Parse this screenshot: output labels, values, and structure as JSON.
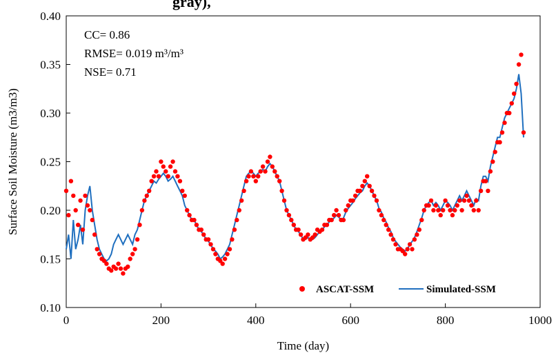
{
  "chart_data": {
    "type": "scatter",
    "title": "",
    "partial_title_visible": "gray),",
    "xlabel": "Time (day)",
    "ylabel": "Surface Soil Moisture (m3/m3)",
    "xlim": [
      0,
      1000
    ],
    "ylim": [
      0.1,
      0.4
    ],
    "x_ticks": [
      0,
      200,
      400,
      600,
      800,
      1000
    ],
    "x_tick_labels": [
      "0",
      "200",
      "400",
      "600",
      "800",
      "1000"
    ],
    "y_ticks": [
      0.1,
      0.15,
      0.2,
      0.25,
      0.3,
      0.35,
      0.4
    ],
    "y_tick_labels": [
      "0.10",
      "0.15",
      "0.20",
      "0.25",
      "0.30",
      "0.35",
      "0.40"
    ],
    "grid": false,
    "legend_position": "bottom-right",
    "annotations": [
      "CC= 0.86",
      "RMSE= 0.019 m³/m³",
      "NSE= 0.71"
    ],
    "series": [
      {
        "name": "ASCAT-SSM",
        "style": "markers",
        "color": "#ff0000",
        "x": [
          0,
          5,
          10,
          15,
          20,
          25,
          30,
          35,
          40,
          45,
          50,
          55,
          60,
          65,
          70,
          75,
          80,
          85,
          90,
          95,
          100,
          105,
          110,
          115,
          120,
          125,
          130,
          135,
          140,
          145,
          150,
          155,
          160,
          165,
          170,
          175,
          180,
          185,
          190,
          195,
          200,
          205,
          210,
          215,
          220,
          225,
          230,
          235,
          240,
          245,
          250,
          255,
          260,
          265,
          270,
          275,
          280,
          285,
          290,
          295,
          300,
          305,
          310,
          315,
          320,
          325,
          330,
          335,
          340,
          345,
          350,
          355,
          360,
          365,
          370,
          375,
          380,
          385,
          390,
          395,
          400,
          405,
          410,
          415,
          420,
          425,
          430,
          435,
          440,
          445,
          450,
          455,
          460,
          465,
          470,
          475,
          480,
          485,
          490,
          495,
          500,
          505,
          510,
          515,
          520,
          525,
          530,
          535,
          540,
          545,
          550,
          555,
          560,
          565,
          570,
          575,
          580,
          585,
          590,
          595,
          600,
          605,
          610,
          615,
          620,
          625,
          630,
          635,
          640,
          645,
          650,
          655,
          660,
          665,
          670,
          675,
          680,
          685,
          690,
          695,
          700,
          705,
          710,
          715,
          720,
          725,
          730,
          735,
          740,
          745,
          750,
          755,
          760,
          765,
          770,
          775,
          780,
          785,
          790,
          795,
          800,
          805,
          810,
          815,
          820,
          825,
          830,
          835,
          840,
          845,
          850,
          855,
          860,
          865,
          870,
          875,
          880,
          885,
          890,
          895,
          900,
          905,
          910,
          915,
          920,
          925,
          930,
          935,
          940,
          945,
          950,
          955,
          960,
          965
        ],
        "y": [
          0.22,
          0.195,
          0.23,
          0.215,
          0.2,
          0.185,
          0.21,
          0.18,
          0.215,
          0.205,
          0.2,
          0.19,
          0.175,
          0.16,
          0.155,
          0.15,
          0.148,
          0.145,
          0.14,
          0.138,
          0.142,
          0.14,
          0.145,
          0.14,
          0.135,
          0.14,
          0.142,
          0.15,
          0.155,
          0.16,
          0.17,
          0.185,
          0.2,
          0.21,
          0.215,
          0.22,
          0.23,
          0.235,
          0.24,
          0.235,
          0.25,
          0.245,
          0.24,
          0.235,
          0.245,
          0.25,
          0.24,
          0.235,
          0.23,
          0.22,
          0.215,
          0.2,
          0.195,
          0.19,
          0.19,
          0.185,
          0.18,
          0.18,
          0.175,
          0.17,
          0.17,
          0.165,
          0.16,
          0.155,
          0.15,
          0.148,
          0.145,
          0.15,
          0.155,
          0.16,
          0.17,
          0.18,
          0.19,
          0.2,
          0.21,
          0.22,
          0.23,
          0.235,
          0.24,
          0.235,
          0.23,
          0.235,
          0.24,
          0.245,
          0.24,
          0.25,
          0.255,
          0.245,
          0.24,
          0.235,
          0.23,
          0.22,
          0.21,
          0.2,
          0.195,
          0.19,
          0.185,
          0.18,
          0.18,
          0.175,
          0.17,
          0.172,
          0.175,
          0.17,
          0.172,
          0.175,
          0.18,
          0.178,
          0.18,
          0.185,
          0.185,
          0.19,
          0.19,
          0.195,
          0.2,
          0.195,
          0.19,
          0.19,
          0.2,
          0.205,
          0.21,
          0.21,
          0.215,
          0.22,
          0.22,
          0.225,
          0.23,
          0.235,
          0.225,
          0.22,
          0.215,
          0.21,
          0.2,
          0.195,
          0.19,
          0.185,
          0.18,
          0.175,
          0.17,
          0.165,
          0.16,
          0.16,
          0.158,
          0.155,
          0.16,
          0.165,
          0.16,
          0.17,
          0.175,
          0.18,
          0.19,
          0.2,
          0.205,
          0.205,
          0.21,
          0.2,
          0.205,
          0.2,
          0.195,
          0.2,
          0.21,
          0.205,
          0.2,
          0.195,
          0.2,
          0.205,
          0.21,
          0.2,
          0.21,
          0.215,
          0.21,
          0.205,
          0.2,
          0.21,
          0.2,
          0.22,
          0.23,
          0.23,
          0.22,
          0.24,
          0.25,
          0.26,
          0.27,
          0.27,
          0.28,
          0.29,
          0.3,
          0.3,
          0.31,
          0.32,
          0.33,
          0.35,
          0.36,
          0.28
        ]
      },
      {
        "name": "Simulated-SSM",
        "style": "line",
        "color": "#1f6fbf",
        "x": [
          0,
          5,
          10,
          15,
          20,
          25,
          30,
          35,
          40,
          45,
          50,
          55,
          60,
          65,
          70,
          75,
          80,
          85,
          90,
          95,
          100,
          105,
          110,
          115,
          120,
          125,
          130,
          135,
          140,
          145,
          150,
          155,
          160,
          165,
          170,
          175,
          180,
          185,
          190,
          195,
          200,
          205,
          210,
          215,
          220,
          225,
          230,
          235,
          240,
          245,
          250,
          255,
          260,
          265,
          270,
          275,
          280,
          285,
          290,
          295,
          300,
          305,
          310,
          315,
          320,
          325,
          330,
          335,
          340,
          345,
          350,
          355,
          360,
          365,
          370,
          375,
          380,
          385,
          390,
          395,
          400,
          405,
          410,
          415,
          420,
          425,
          430,
          435,
          440,
          445,
          450,
          455,
          460,
          465,
          470,
          475,
          480,
          485,
          490,
          495,
          500,
          505,
          510,
          515,
          520,
          525,
          530,
          535,
          540,
          545,
          550,
          555,
          560,
          565,
          570,
          575,
          580,
          585,
          590,
          595,
          600,
          605,
          610,
          615,
          620,
          625,
          630,
          635,
          640,
          645,
          650,
          655,
          660,
          665,
          670,
          675,
          680,
          685,
          690,
          695,
          700,
          705,
          710,
          715,
          720,
          725,
          730,
          735,
          740,
          745,
          750,
          755,
          760,
          765,
          770,
          775,
          780,
          785,
          790,
          795,
          800,
          805,
          810,
          815,
          820,
          825,
          830,
          835,
          840,
          845,
          850,
          855,
          860,
          865,
          870,
          875,
          880,
          885,
          890,
          895,
          900,
          905,
          910,
          915,
          920,
          925,
          930,
          935,
          940,
          945,
          950,
          955,
          960,
          965
        ],
        "y": [
          0.16,
          0.175,
          0.15,
          0.19,
          0.16,
          0.17,
          0.185,
          0.165,
          0.2,
          0.215,
          0.225,
          0.2,
          0.185,
          0.17,
          0.16,
          0.155,
          0.15,
          0.148,
          0.15,
          0.155,
          0.165,
          0.17,
          0.175,
          0.17,
          0.165,
          0.17,
          0.175,
          0.17,
          0.165,
          0.175,
          0.18,
          0.19,
          0.2,
          0.21,
          0.215,
          0.22,
          0.225,
          0.23,
          0.228,
          0.232,
          0.235,
          0.238,
          0.235,
          0.23,
          0.232,
          0.235,
          0.23,
          0.225,
          0.22,
          0.215,
          0.205,
          0.2,
          0.195,
          0.19,
          0.19,
          0.185,
          0.18,
          0.178,
          0.175,
          0.17,
          0.168,
          0.165,
          0.16,
          0.158,
          0.155,
          0.15,
          0.152,
          0.155,
          0.16,
          0.165,
          0.175,
          0.185,
          0.195,
          0.205,
          0.215,
          0.225,
          0.235,
          0.238,
          0.24,
          0.238,
          0.235,
          0.238,
          0.24,
          0.242,
          0.24,
          0.245,
          0.248,
          0.245,
          0.24,
          0.235,
          0.23,
          0.22,
          0.21,
          0.2,
          0.195,
          0.19,
          0.185,
          0.18,
          0.178,
          0.175,
          0.17,
          0.17,
          0.172,
          0.17,
          0.17,
          0.172,
          0.175,
          0.178,
          0.18,
          0.183,
          0.185,
          0.188,
          0.19,
          0.192,
          0.195,
          0.193,
          0.19,
          0.192,
          0.198,
          0.202,
          0.205,
          0.208,
          0.212,
          0.215,
          0.218,
          0.22,
          0.225,
          0.228,
          0.225,
          0.22,
          0.215,
          0.21,
          0.202,
          0.198,
          0.192,
          0.188,
          0.182,
          0.178,
          0.172,
          0.168,
          0.165,
          0.162,
          0.16,
          0.158,
          0.16,
          0.165,
          0.168,
          0.172,
          0.178,
          0.185,
          0.192,
          0.2,
          0.205,
          0.208,
          0.21,
          0.205,
          0.208,
          0.205,
          0.2,
          0.205,
          0.21,
          0.208,
          0.205,
          0.2,
          0.205,
          0.21,
          0.215,
          0.21,
          0.215,
          0.22,
          0.215,
          0.21,
          0.205,
          0.212,
          0.21,
          0.225,
          0.235,
          0.235,
          0.23,
          0.245,
          0.255,
          0.265,
          0.275,
          0.275,
          0.285,
          0.295,
          0.3,
          0.305,
          0.31,
          0.315,
          0.325,
          0.34,
          0.32,
          0.275
        ]
      }
    ]
  }
}
